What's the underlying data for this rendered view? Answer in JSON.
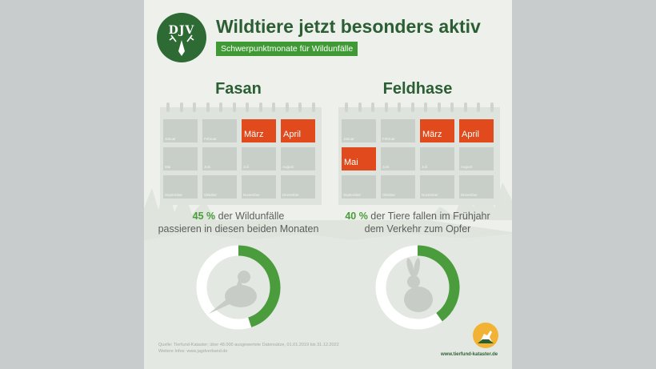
{
  "header": {
    "logo_text": "DJV",
    "title": "Wildtiere jetzt besonders aktiv",
    "subtitle": "Schwerpunktmonate für Wildunfälle"
  },
  "colors": {
    "highlight": "#e04a1c",
    "accent_green": "#4a9c3c",
    "dark_green": "#2b5f33",
    "ring_grey": "#ffffff"
  },
  "months": [
    "Januar",
    "Februar",
    "März",
    "April",
    "Mai",
    "Juni",
    "Juli",
    "August",
    "September",
    "Oktober",
    "November",
    "Dezember"
  ],
  "panels": [
    {
      "animal": "Fasan",
      "highlighted_months": [
        "März",
        "April"
      ],
      "stat_percent": "45 %",
      "stat_line1": " der Wildunfälle",
      "stat_line2": "passieren in diesen beiden Monaten",
      "icon": "pheasant-icon"
    },
    {
      "animal": "Feldhase",
      "highlighted_months": [
        "März",
        "April",
        "Mai"
      ],
      "stat_percent": "40 %",
      "stat_line1": " der Tiere fallen im Frühjahr",
      "stat_line2": "dem Verkehr zum Opfer",
      "icon": "hare-icon"
    }
  ],
  "chart_data": [
    {
      "type": "pie",
      "title": "Fasan",
      "categories": [
        "",
        ""
      ],
      "values": [
        45,
        55
      ]
    },
    {
      "type": "pie",
      "title": "Feldhase",
      "categories": [
        "",
        ""
      ],
      "values": [
        40,
        60
      ]
    }
  ],
  "footer": {
    "source_line1": "Quelle: Tierfund-Kataster; über 48.000 ausgewertete Datensätze, 01.01.2019 bis 31.12.2022",
    "source_line2": "Weitere Infos: www.jagdverband.de",
    "website": "www.tierfund-kataster.de"
  }
}
